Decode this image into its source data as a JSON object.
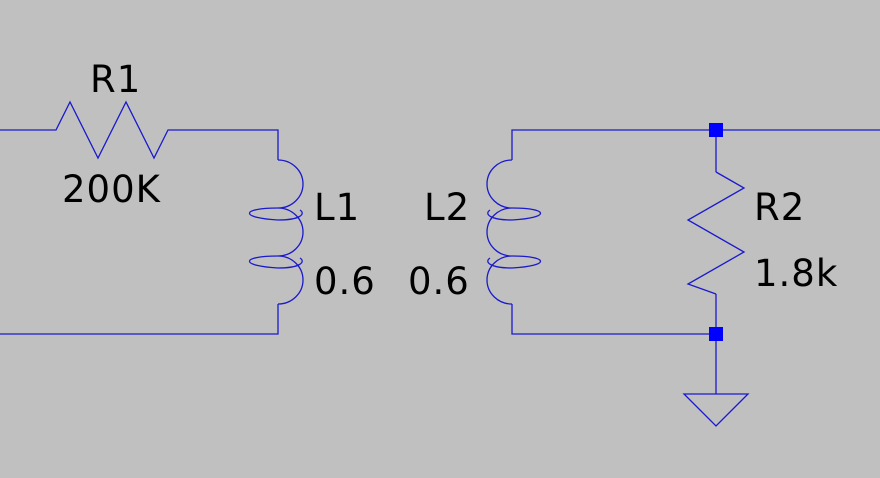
{
  "schematic": {
    "background_color": "#c0c0c0",
    "wire_color": "#1a1acc",
    "junction_color": "#0000ff",
    "components": {
      "r1": {
        "name": "R1",
        "value": "200K"
      },
      "l1": {
        "name": "L1",
        "value": "0.6"
      },
      "l2": {
        "name": "L2",
        "value": "0.6"
      },
      "r2": {
        "name": "R2",
        "value": "1.8k"
      }
    }
  }
}
